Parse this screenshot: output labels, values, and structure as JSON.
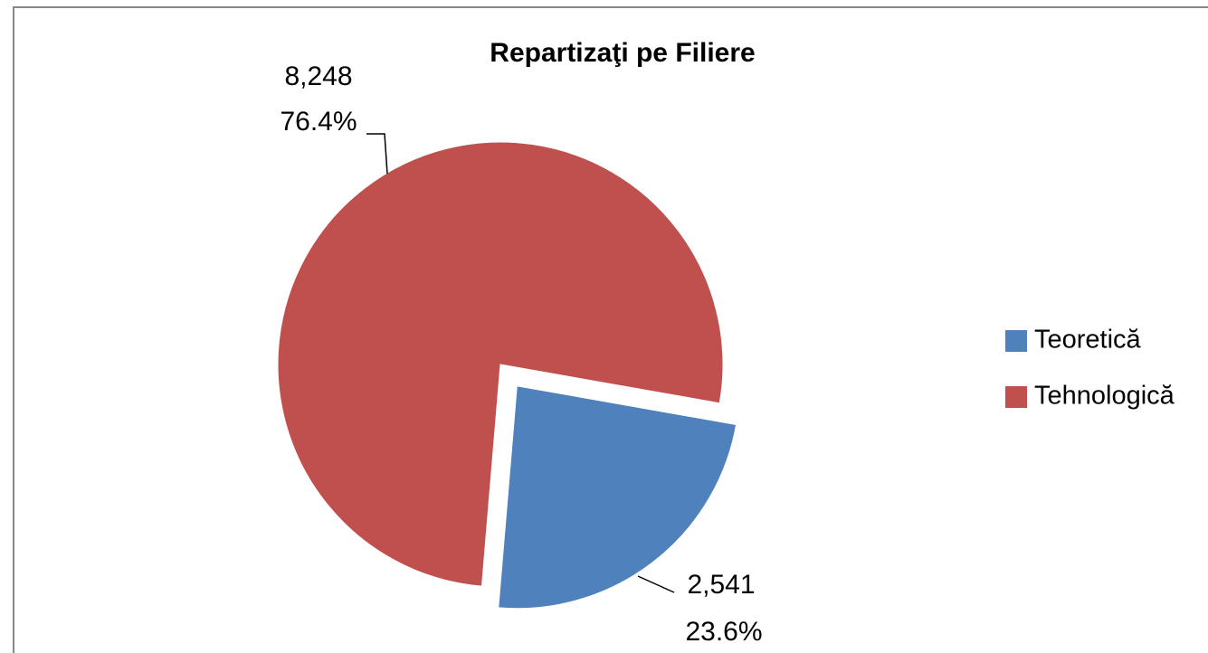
{
  "chart_data": {
    "type": "pie",
    "title": "Repartizaţi pe Filiere",
    "categories": [
      "Teoretică",
      "Tehnologică"
    ],
    "values": [
      2541,
      8248
    ],
    "value_labels": [
      "2,541",
      "8,248"
    ],
    "percents": [
      23.6,
      76.4
    ],
    "percent_labels": [
      "23.6%",
      "76.4%"
    ],
    "colors": [
      "#4f81bd",
      "#c0504d"
    ],
    "exploded": [
      true,
      false
    ],
    "legend": "right"
  }
}
